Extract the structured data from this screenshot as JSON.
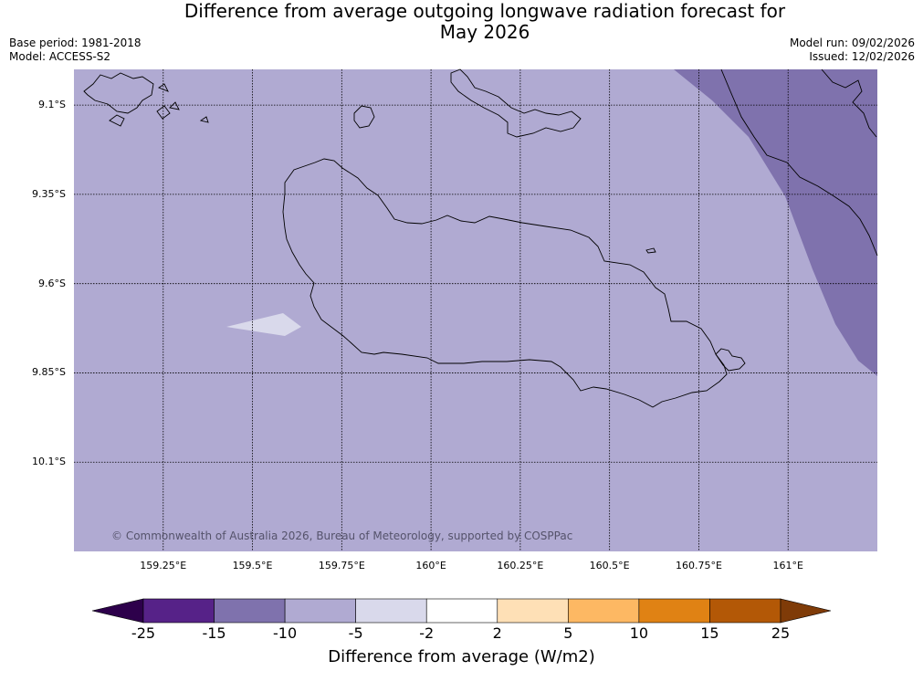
{
  "header": {
    "title_line1": "Difference from average outgoing longwave radiation forecast for",
    "title_line2": "May 2026",
    "base_period": "Base period: 1981-2018",
    "model": "Model: ACCESS-S2",
    "model_run": "Model run: 09/02/2026",
    "issued": "Issued: 12/02/2026"
  },
  "map": {
    "lat_ticks": [
      "9.1°S",
      "9.35°S",
      "9.6°S",
      "9.85°S",
      "10.1°S"
    ],
    "lon_ticks": [
      "159.25°E",
      "159.5°E",
      "159.75°E",
      "160°E",
      "160.25°E",
      "160.5°E",
      "160.75°E",
      "161°E"
    ],
    "lat_values": [
      -9.1,
      -9.35,
      -9.6,
      -9.85,
      -10.1
    ],
    "lon_values": [
      159.25,
      159.5,
      159.75,
      160.0,
      160.25,
      160.5,
      160.75,
      161.0
    ],
    "extent": {
      "lon_min": 159.0,
      "lon_max": 161.25,
      "lat_min": -10.35,
      "lat_max": -9.0
    },
    "background_color": "#b0aad2",
    "copyright": "© Commonwealth of Australia 2026, Bureau of Meteorology, supported by COSPPac"
  },
  "colorbar": {
    "ticks": [
      "-25",
      "-15",
      "-10",
      "-5",
      "-2",
      "2",
      "5",
      "10",
      "15",
      "25"
    ],
    "colors": [
      "#562288",
      "#7f72ad",
      "#b0aad2",
      "#d9d9eb",
      "#ffffff",
      "#fee0b6",
      "#fdb863",
      "#e08214",
      "#b35806"
    ],
    "extend_low_color": "#2d004b",
    "extend_high_color": "#7f3b08",
    "label": "Difference from average (W/m2)"
  }
}
